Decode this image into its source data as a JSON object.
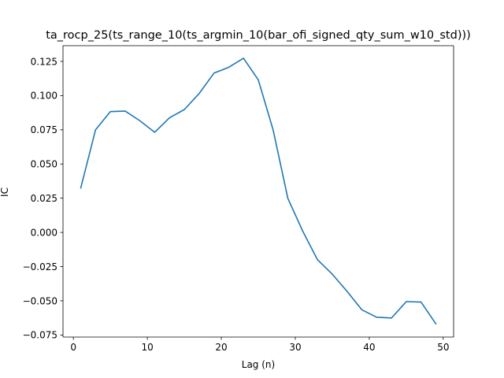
{
  "chart_data": {
    "type": "line",
    "title": "ta_rocp_25(ts_range_10(ts_argmin_10(bar_ofi_signed_qty_sum_w10_std)))",
    "xlabel": "Lag (n)",
    "ylabel": "IC",
    "xlim": [
      -1.4,
      51.4
    ],
    "ylim": [
      -0.0765,
      0.1365
    ],
    "x_ticks": [
      0,
      10,
      20,
      30,
      40,
      50
    ],
    "x_tick_labels": [
      "0",
      "10",
      "20",
      "30",
      "40",
      "50"
    ],
    "y_ticks": [
      -0.075,
      -0.05,
      -0.025,
      0.0,
      0.025,
      0.05,
      0.075,
      0.1,
      0.125
    ],
    "y_tick_labels": [
      "−0.075",
      "−0.050",
      "−0.025",
      "0.000",
      "0.025",
      "0.050",
      "0.075",
      "0.100",
      "0.125"
    ],
    "grid": false,
    "series": [
      {
        "color": "#1f77b4",
        "x": [
          1,
          3,
          5,
          7,
          9,
          11,
          13,
          15,
          17,
          19,
          21,
          23,
          25,
          27,
          29,
          31,
          33,
          35,
          37,
          39,
          41,
          43,
          45,
          47,
          49
        ],
        "y": [
          0.0325,
          0.075,
          0.0883,
          0.0887,
          0.0816,
          0.0732,
          0.0838,
          0.0898,
          0.1015,
          0.1164,
          0.1207,
          0.1273,
          0.1115,
          0.075,
          0.0248,
          0.001,
          -0.02,
          -0.0305,
          -0.0431,
          -0.0566,
          -0.062,
          -0.0626,
          -0.0506,
          -0.0509,
          -0.0668
        ]
      }
    ]
  }
}
